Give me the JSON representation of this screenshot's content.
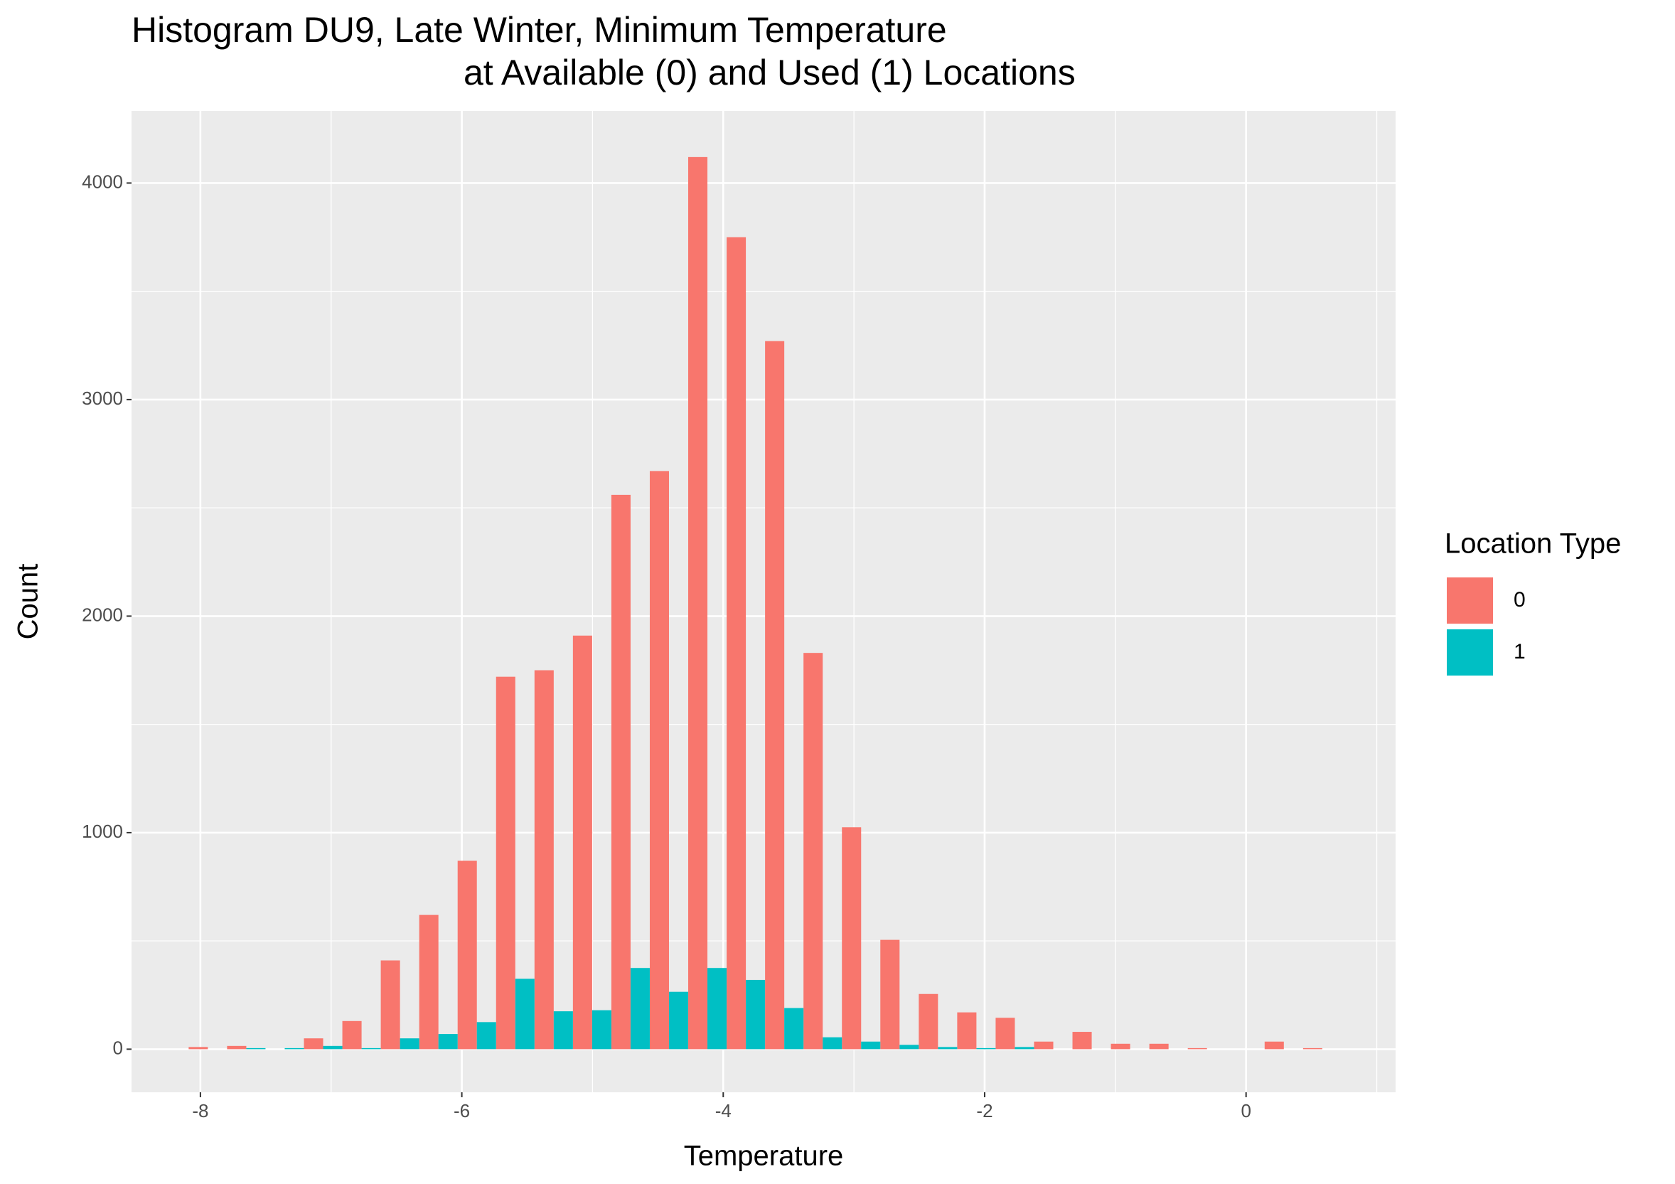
{
  "chart_data": {
    "type": "histogram",
    "title": [
      "Histogram DU9, Late Winter, Minimum Temperature",
      "at Available (0) and Used (1) Locations"
    ],
    "x_label": "Temperature",
    "y_label": "Count",
    "legend_title": "Location Type",
    "legend_position": "right",
    "bins": [
      -8.09,
      -7.796,
      -7.502,
      -7.208,
      -6.914,
      -6.62,
      -6.326,
      -6.032,
      -5.738,
      -5.444,
      -5.15,
      -4.856,
      -4.562,
      -4.268,
      -3.974,
      -3.68,
      -3.386,
      -3.092,
      -2.798,
      -2.504,
      -2.21,
      -1.916,
      -1.622,
      -1.328,
      -1.034,
      -0.74,
      -0.446,
      -0.152,
      0.142,
      0.436,
      0.73
    ],
    "series": [
      {
        "name": "0",
        "color": "#f8766d",
        "values": [
          10,
          15,
          0,
          50,
          130,
          410,
          620,
          870,
          1720,
          1750,
          1910,
          2560,
          2670,
          4120,
          3750,
          3270,
          1830,
          1025,
          505,
          255,
          170,
          145,
          35,
          80,
          25,
          25,
          5,
          0,
          35,
          5
        ]
      },
      {
        "name": "1",
        "color": "#00bfc4",
        "values": [
          0,
          5,
          5,
          15,
          5,
          50,
          70,
          125,
          325,
          175,
          180,
          375,
          265,
          375,
          320,
          190,
          55,
          35,
          20,
          10,
          5,
          10,
          0,
          0,
          0,
          0,
          0,
          0,
          0,
          0
        ]
      }
    ],
    "xlim": [
      -8.527,
      1.144
    ],
    "xticks": [
      -8,
      -6,
      -4,
      -2,
      0
    ],
    "ylim": [
      -199,
      4333
    ],
    "yticks": [
      0,
      1000,
      2000,
      3000,
      4000
    ],
    "grid": true
  }
}
